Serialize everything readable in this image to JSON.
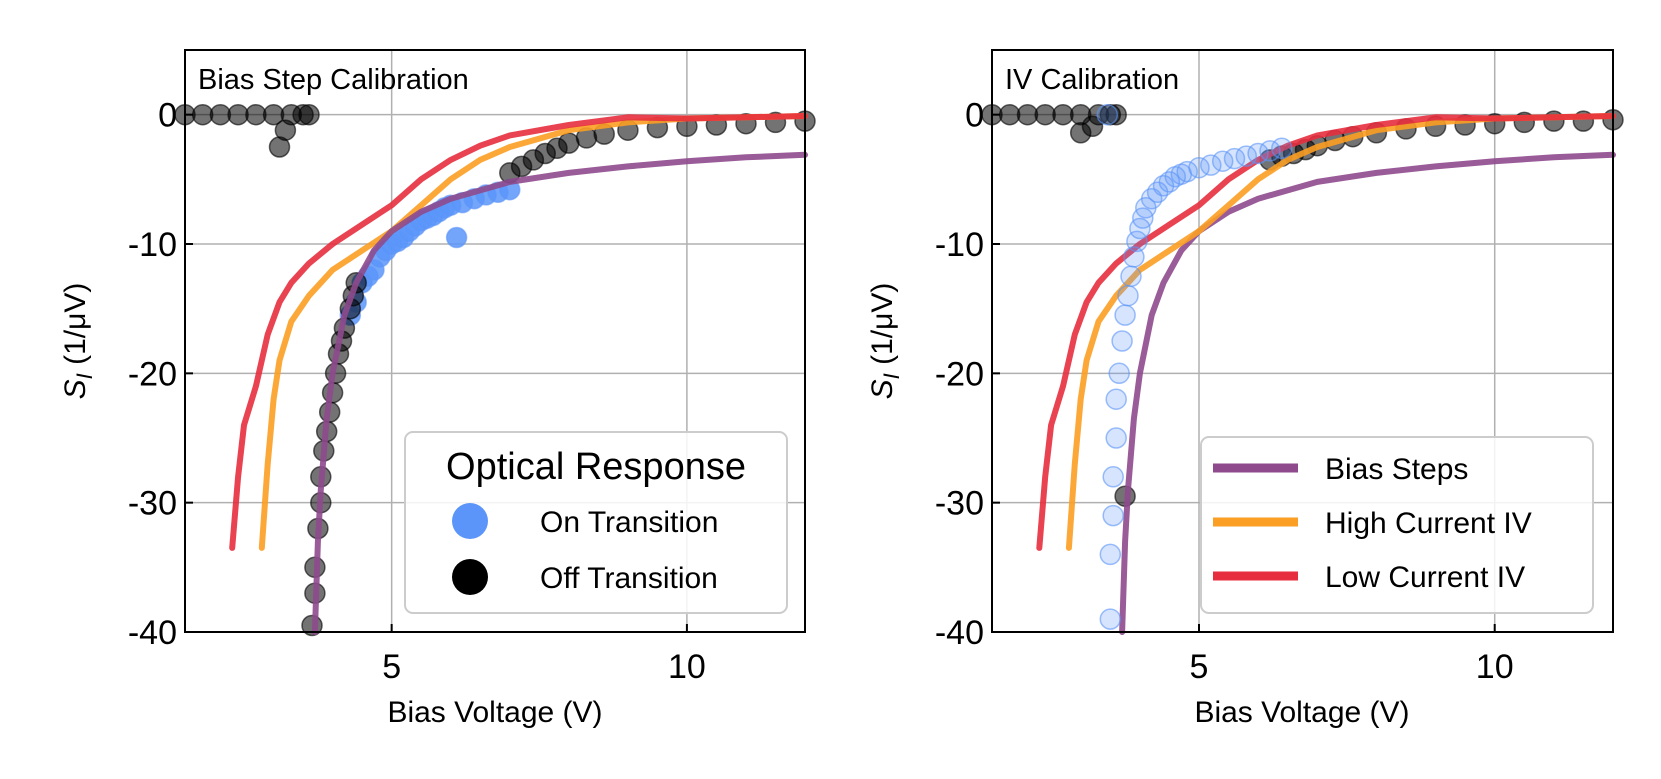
{
  "chart_data": [
    {
      "type": "scatter",
      "title": "Bias Step Calibration",
      "xlabel": "Bias Voltage (V)",
      "ylabel_main": "S",
      "ylabel_sub": "I",
      "ylabel_units": " (1/μV)",
      "xlim": [
        1.5,
        12
      ],
      "ylim": [
        -40,
        5
      ],
      "xticks": [
        "5",
        "10"
      ],
      "xtick_values": [
        5,
        10
      ],
      "yticks": [
        "0",
        "-10",
        "-20",
        "-30",
        "-40"
      ],
      "ytick_values": [
        0,
        -10,
        -20,
        -30,
        -40
      ],
      "grid": true,
      "legend": {
        "title": "Optical Response",
        "location": "lower-right",
        "entries": [
          {
            "label": "On Transition",
            "color": "#5b95f9",
            "marker": "circle"
          },
          {
            "label": "Off Transition",
            "color": "#000000",
            "marker": "circle"
          }
        ]
      },
      "series": [
        {
          "name": "Bias Steps",
          "kind": "line",
          "color": "#8e4a8d",
          "x": [
            3.7,
            3.75,
            3.8,
            3.9,
            4.0,
            4.2,
            4.4,
            4.7,
            5.0,
            5.5,
            6.0,
            7.0,
            8.0,
            9.0,
            10.0,
            11.0,
            12.0
          ],
          "y": [
            -40,
            -33,
            -29,
            -23.5,
            -20,
            -15.5,
            -13,
            -10.5,
            -9,
            -7.5,
            -6.5,
            -5.2,
            -4.5,
            -4,
            -3.6,
            -3.3,
            -3.1
          ]
        },
        {
          "name": "High Current IV",
          "kind": "line",
          "color": "#fb9e24",
          "x": [
            2.8,
            2.9,
            3.0,
            3.1,
            3.3,
            3.6,
            4.0,
            4.5,
            5.0,
            5.5,
            6.0,
            6.5,
            7.0,
            8.0,
            9.0,
            10.0,
            11.0,
            12.0
          ],
          "y": [
            -33.5,
            -27,
            -22,
            -19,
            -16,
            -14,
            -12,
            -10.5,
            -9,
            -7,
            -5,
            -3.5,
            -2.5,
            -1.2,
            -0.6,
            -0.3,
            -0.2,
            -0.1
          ]
        },
        {
          "name": "Low Current IV",
          "kind": "line",
          "color": "#e72e3e",
          "x": [
            2.3,
            2.4,
            2.5,
            2.7,
            2.9,
            3.1,
            3.3,
            3.6,
            4.0,
            4.5,
            5.0,
            5.5,
            6.0,
            6.5,
            7.0,
            8.0,
            9.0,
            10.0,
            11.0,
            12.0
          ],
          "y": [
            -33.5,
            -28,
            -24,
            -21,
            -17,
            -14.5,
            -13,
            -11.5,
            -10,
            -8.5,
            -7,
            -5,
            -3.5,
            -2.4,
            -1.6,
            -0.8,
            -0.2,
            -0.3,
            -0.2,
            -0.1
          ]
        },
        {
          "name": "On Transition",
          "kind": "scatter",
          "color": "#5b95f9",
          "x": [
            4.3,
            4.4,
            4.5,
            4.6,
            4.7,
            4.8,
            4.9,
            5.0,
            5.1,
            5.2,
            5.3,
            5.4,
            5.5,
            5.6,
            5.7,
            5.8,
            5.9,
            6.0,
            6.2,
            6.4,
            6.6,
            6.8,
            7.0,
            6.1
          ],
          "y": [
            -15.5,
            -14.5,
            -13,
            -12.5,
            -12,
            -11,
            -10.5,
            -10,
            -9.8,
            -9.5,
            -9,
            -8.6,
            -8.2,
            -8,
            -7.8,
            -7.5,
            -7.2,
            -7,
            -6.8,
            -6.5,
            -6.2,
            -6,
            -5.8,
            -9.5
          ]
        },
        {
          "name": "Off Transition",
          "kind": "scatter",
          "color": "#000000",
          "x": [
            3.65,
            3.7,
            3.7,
            3.75,
            3.8,
            3.8,
            3.85,
            3.9,
            3.95,
            4.0,
            4.05,
            4.1,
            4.15,
            4.2,
            4.3,
            4.35,
            4.4,
            7.0,
            7.2,
            7.4,
            7.6,
            7.8,
            8.0,
            8.3,
            8.6,
            9.0,
            9.5,
            10.0,
            10.5,
            11.0,
            11.5,
            12.0,
            1.5,
            1.8,
            2.1,
            2.4,
            2.7,
            3.0,
            3.3,
            3.5,
            3.6,
            3.1,
            3.2
          ],
          "y": [
            -39.5,
            -37,
            -35,
            -32,
            -30,
            -28,
            -26,
            -24.5,
            -23,
            -21.5,
            -20,
            -18.5,
            -17.5,
            -16.5,
            -15,
            -14,
            -13,
            -4.5,
            -4,
            -3.5,
            -3,
            -2.6,
            -2.2,
            -1.8,
            -1.5,
            -1.2,
            -1,
            -0.9,
            -0.8,
            -0.7,
            -0.6,
            -0.5,
            0,
            0,
            0,
            0,
            0,
            0,
            0,
            0,
            0,
            -2.5,
            -1.2
          ]
        }
      ]
    },
    {
      "type": "scatter",
      "title": "IV Calibration",
      "xlabel": "Bias Voltage (V)",
      "ylabel_main": "S",
      "ylabel_sub": "I",
      "ylabel_units": " (1/μV)",
      "xlim": [
        1.5,
        12
      ],
      "ylim": [
        -40,
        5
      ],
      "xticks": [
        "5",
        "10"
      ],
      "xtick_values": [
        5,
        10
      ],
      "yticks": [
        "0",
        "-10",
        "-20",
        "-30",
        "-40"
      ],
      "ytick_values": [
        0,
        -10,
        -20,
        -30,
        -40
      ],
      "grid": true,
      "legend": {
        "title": "",
        "location": "lower-right",
        "entries": [
          {
            "label": "Bias Steps",
            "color": "#8e4a8d",
            "marker": "line"
          },
          {
            "label": "High Current IV",
            "color": "#fb9e24",
            "marker": "line"
          },
          {
            "label": "Low Current IV",
            "color": "#e72e3e",
            "marker": "line"
          }
        ]
      },
      "series": [
        {
          "name": "Bias Steps",
          "kind": "line",
          "color": "#8e4a8d",
          "x": [
            3.7,
            3.75,
            3.8,
            3.9,
            4.0,
            4.2,
            4.4,
            4.7,
            5.0,
            5.5,
            6.0,
            7.0,
            8.0,
            9.0,
            10.0,
            11.0,
            12.0
          ],
          "y": [
            -40,
            -33,
            -29,
            -23.5,
            -20,
            -15.5,
            -13,
            -10.5,
            -9,
            -7.5,
            -6.5,
            -5.2,
            -4.5,
            -4,
            -3.6,
            -3.3,
            -3.1
          ]
        },
        {
          "name": "High Current IV",
          "kind": "line",
          "color": "#fb9e24",
          "x": [
            2.8,
            2.9,
            3.0,
            3.1,
            3.3,
            3.6,
            4.0,
            4.5,
            5.0,
            5.5,
            6.0,
            6.5,
            7.0,
            8.0,
            9.0,
            10.0,
            11.0,
            12.0
          ],
          "y": [
            -33.5,
            -27,
            -22,
            -19,
            -16,
            -14,
            -12,
            -10.5,
            -9,
            -7,
            -5,
            -3.5,
            -2.5,
            -1.2,
            -0.6,
            -0.3,
            -0.2,
            -0.1
          ]
        },
        {
          "name": "Low Current IV",
          "kind": "line",
          "color": "#e72e3e",
          "x": [
            2.3,
            2.4,
            2.5,
            2.7,
            2.9,
            3.1,
            3.3,
            3.6,
            4.0,
            4.5,
            5.0,
            5.5,
            6.0,
            6.5,
            7.0,
            8.0,
            9.0,
            10.0,
            11.0,
            12.0
          ],
          "y": [
            -33.5,
            -28,
            -24,
            -21,
            -17,
            -14.5,
            -13,
            -11.5,
            -10,
            -8.5,
            -7,
            -5,
            -3.5,
            -2.4,
            -1.6,
            -0.8,
            -0.2,
            -0.3,
            -0.2,
            -0.1
          ]
        },
        {
          "name": "On Transition",
          "kind": "scatter",
          "color": "#5b95f9",
          "x": [
            3.5,
            3.5,
            3.55,
            3.55,
            3.6,
            3.6,
            3.65,
            3.7,
            3.75,
            3.8,
            3.85,
            3.9,
            3.95,
            4.0,
            4.05,
            4.1,
            4.2,
            4.3,
            4.4,
            4.5,
            4.6,
            4.7,
            4.8,
            5.0,
            5.2,
            5.4,
            5.6,
            5.8,
            6.0,
            6.2,
            6.4,
            3.45
          ],
          "y": [
            -39,
            -34,
            -31,
            -28,
            -25,
            -22,
            -20,
            -17.5,
            -15.5,
            -14,
            -12.5,
            -11,
            -9.8,
            -8.8,
            -8,
            -7.2,
            -6.5,
            -6,
            -5.5,
            -5.2,
            -4.8,
            -4.6,
            -4.4,
            -4.1,
            -3.9,
            -3.6,
            -3.4,
            -3.2,
            -3.0,
            -2.8,
            -2.6,
            0
          ]
        },
        {
          "name": "Off Transition",
          "kind": "scatter",
          "color": "#000000",
          "x": [
            6.2,
            6.4,
            6.6,
            6.8,
            7.0,
            7.3,
            7.6,
            8.0,
            8.5,
            9.0,
            9.5,
            10.0,
            10.5,
            11.0,
            11.5,
            12.0,
            1.5,
            1.8,
            2.1,
            2.4,
            2.7,
            3.0,
            3.3,
            3.5,
            3.6,
            3.0,
            3.2,
            3.75
          ],
          "y": [
            -3.5,
            -3.2,
            -3,
            -2.7,
            -2.4,
            -2.0,
            -1.7,
            -1.4,
            -1.1,
            -0.9,
            -0.8,
            -0.7,
            -0.6,
            -0.5,
            -0.5,
            -0.4,
            0,
            0,
            0,
            0,
            0,
            0,
            0,
            0,
            0,
            -1.4,
            -0.9,
            -29.5
          ]
        }
      ]
    }
  ]
}
